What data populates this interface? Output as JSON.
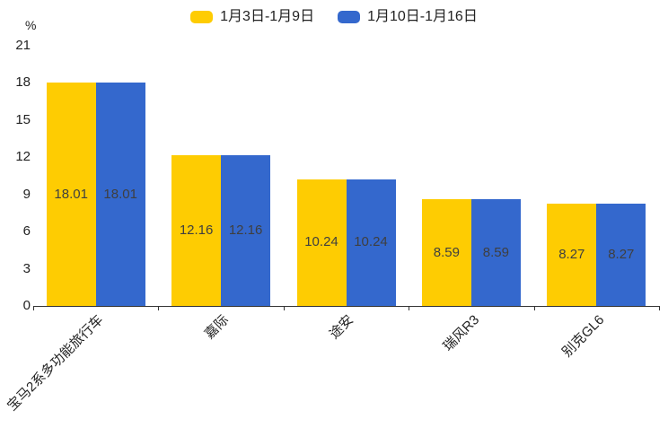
{
  "chart_data": {
    "type": "bar",
    "title": "",
    "unit": "%",
    "categories": [
      "宝马2系多功能旅行车",
      "嘉际",
      "途安",
      "瑞风R3",
      "别克GL6"
    ],
    "series": [
      {
        "name": "1月3日-1月9日",
        "color": "#fecc02",
        "values": [
          18.01,
          12.16,
          10.24,
          8.59,
          8.27
        ]
      },
      {
        "name": "1月10日-1月16日",
        "color": "#3468cd",
        "values": [
          18.01,
          12.16,
          10.24,
          8.59,
          8.27
        ]
      }
    ],
    "value_labels": [
      "18.01",
      "12.16",
      "10.24",
      "8.59",
      "8.27"
    ],
    "xlabel": "",
    "ylabel": "%",
    "ylim": [
      0,
      21
    ],
    "yticks": [
      0,
      3,
      6,
      9,
      12,
      15,
      18,
      21
    ],
    "grid": false,
    "legend_position": "top",
    "value_label_position": "inside-center",
    "axis_color": "#333333",
    "text_color": "#222222",
    "value_label_color": "#3f3f3f"
  }
}
